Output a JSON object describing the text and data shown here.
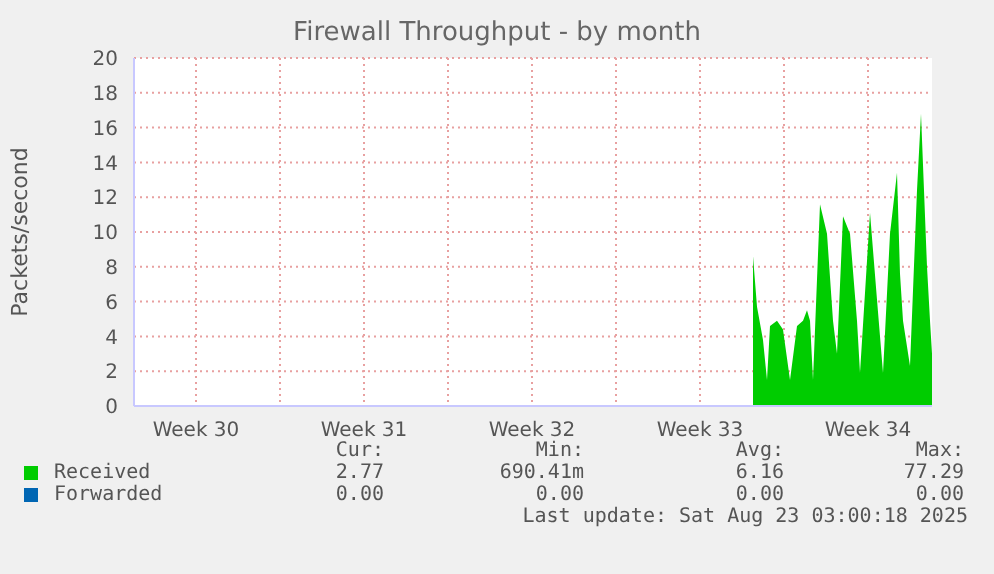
{
  "chart_data": {
    "type": "area",
    "title": "Firewall Throughput - by month",
    "ylabel": "Packets/second",
    "xlim": [
      "2025-07-21T22:00",
      "2025-08-24T04:00"
    ],
    "xticks": [
      {
        "value": "2025-07-24T12:00",
        "label": "Week 30"
      },
      {
        "value": "2025-07-28T00:00",
        "label": null
      },
      {
        "value": "2025-07-31T12:00",
        "label": "Week 31"
      },
      {
        "value": "2025-08-04T00:00",
        "label": null
      },
      {
        "value": "2025-08-07T12:00",
        "label": "Week 32"
      },
      {
        "value": "2025-08-11T00:00",
        "label": null
      },
      {
        "value": "2025-08-14T12:00",
        "label": "Week 33"
      },
      {
        "value": "2025-08-18T00:00",
        "label": null
      },
      {
        "value": "2025-08-21T12:00",
        "label": "Week 34"
      }
    ],
    "ylim": [
      0,
      20
    ],
    "yticks": [
      0,
      2,
      4,
      6,
      8,
      10,
      12,
      14,
      16,
      18,
      20
    ],
    "grid": true,
    "legend": "bottom",
    "series": [
      {
        "name": "Received",
        "color": "#00cc00",
        "x": [
          "2025-08-16T17:00",
          "2025-08-16T21:00",
          "2025-08-17T03:00",
          "2025-08-17T07:00",
          "2025-08-17T10:00",
          "2025-08-17T17:00",
          "2025-08-17T23:00",
          "2025-08-18T06:00",
          "2025-08-18T13:00",
          "2025-08-18T19:00",
          "2025-08-18T23:00",
          "2025-08-19T02:00",
          "2025-08-19T05:00",
          "2025-08-19T12:00",
          "2025-08-19T19:00",
          "2025-08-20T01:00",
          "2025-08-20T05:00",
          "2025-08-20T11:00",
          "2025-08-20T18:00",
          "2025-08-21T01:00",
          "2025-08-21T04:00",
          "2025-08-21T14:00",
          "2025-08-21T21:00",
          "2025-08-22T03:00",
          "2025-08-22T10:00",
          "2025-08-22T17:00",
          "2025-08-22T20:00",
          "2025-08-22T23:00",
          "2025-08-23T06:00",
          "2025-08-23T13:00",
          "2025-08-23T17:00",
          "2025-08-23T23:00",
          "2025-08-24T02:00",
          "2025-08-24T04:00"
        ],
        "values": [
          8.6,
          5.7,
          3.8,
          1.5,
          4.6,
          4.9,
          4.4,
          1.5,
          4.6,
          4.9,
          5.5,
          4.9,
          1.5,
          11.6,
          9.9,
          4.9,
          3.0,
          10.9,
          9.9,
          4.9,
          1.9,
          11.1,
          6.1,
          1.9,
          9.9,
          13.4,
          7.6,
          4.9,
          2.3,
          12.4,
          16.8,
          8.0,
          4.9,
          3.0
        ]
      },
      {
        "name": "Forwarded",
        "color": "#0066b3"
      }
    ],
    "annotations": [
      "Cur:",
      "Min:",
      "Avg:",
      "Max:",
      "2.77",
      "690.41m",
      "6.16",
      "77.29",
      "0.00",
      "0.00",
      "0.00",
      "0.00",
      "Last update: Sat Aug 23 03:00:18 2025"
    ]
  }
}
